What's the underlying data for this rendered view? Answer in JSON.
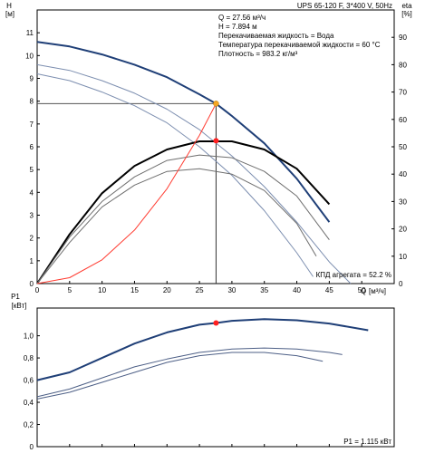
{
  "chart_data": [
    {
      "type": "line",
      "title": "UPS 65-120 F, 3*400 V, 50Hz",
      "ylabel": "H",
      "yunit": "[м]",
      "y2label": "eta",
      "y2unit": "[%]",
      "xlabel": "Q",
      "xunit": "[м³/ч]",
      "xlim": [
        0,
        55
      ],
      "ylim": [
        0,
        12
      ],
      "y2lim": [
        0,
        100
      ],
      "x_ticks": [
        0,
        5,
        10,
        15,
        20,
        25,
        30,
        35,
        40,
        45,
        50
      ],
      "y_ticks": [
        0,
        1,
        2,
        3,
        4,
        5,
        6,
        7,
        8,
        9,
        10,
        11
      ],
      "y2_ticks": [
        0,
        10,
        20,
        30,
        40,
        50,
        60,
        70,
        80,
        90
      ],
      "grid": false,
      "annotations": [
        "Q = 27.56 м³/ч",
        "H = 7.894 м",
        "Перекачиваемая жидкость = Вода",
        "Температура перекачиваемой жидкости = 60 °C",
        "Плотность = 983.2 кг/м³"
      ],
      "corner_label": "КПД агрегата = 52.2 %",
      "operating_point": {
        "x": 27.56,
        "y": 7.894,
        "color": "#f5a623"
      },
      "efficiency_point": {
        "x": 27.56,
        "y2": 52.2,
        "color": "#ff2020"
      },
      "series": [
        {
          "axis": "H",
          "color": "#1f3f77",
          "width": 2,
          "x": [
            0,
            5,
            10,
            15,
            20,
            25,
            27.56,
            30,
            35,
            40,
            45
          ],
          "y": [
            10.6,
            10.4,
            10.05,
            9.6,
            9.05,
            8.3,
            7.89,
            7.35,
            6.15,
            4.6,
            2.7
          ]
        },
        {
          "axis": "H",
          "color": "#7d8fb0",
          "width": 1,
          "x": [
            0,
            5,
            10,
            15,
            20,
            25,
            30,
            35,
            40,
            45,
            48.3
          ],
          "y": [
            9.6,
            9.35,
            8.9,
            8.35,
            7.65,
            6.75,
            5.6,
            4.25,
            2.7,
            0.95,
            0
          ]
        },
        {
          "axis": "H",
          "color": "#7d8fb0",
          "width": 1,
          "x": [
            0,
            5,
            10,
            15,
            20,
            25,
            30,
            35,
            40,
            42.5
          ],
          "y": [
            9.2,
            8.9,
            8.4,
            7.8,
            7.05,
            6.0,
            4.75,
            3.2,
            1.35,
            0.3
          ]
        },
        {
          "axis": "eta",
          "color": "#000000",
          "width": 2,
          "x": [
            0,
            5,
            10,
            15,
            20,
            25,
            30,
            35,
            40,
            45
          ],
          "y": [
            0,
            18,
            33,
            43,
            49,
            52,
            52,
            49,
            42,
            29
          ]
        },
        {
          "axis": "eta",
          "color": "#6e6e6e",
          "width": 1,
          "x": [
            0,
            5,
            10,
            15,
            20,
            25,
            30,
            35,
            40,
            45
          ],
          "y": [
            0,
            17,
            30,
            39,
            45,
            47,
            46,
            41,
            32,
            16
          ]
        },
        {
          "axis": "eta",
          "color": "#6e6e6e",
          "width": 1,
          "x": [
            0,
            5,
            10,
            15,
            20,
            25,
            30,
            35,
            40,
            43
          ],
          "y": [
            0,
            15,
            28,
            36,
            41,
            42,
            40,
            34,
            22,
            10
          ]
        },
        {
          "axis": "H",
          "color": "#ff3b30",
          "width": 1,
          "x": [
            0,
            5,
            10,
            15,
            20,
            25,
            27.56
          ],
          "y": [
            0,
            0.26,
            1.04,
            2.35,
            4.16,
            6.5,
            7.89
          ]
        }
      ]
    },
    {
      "type": "line",
      "ylabel": "P1",
      "yunit": "[кВт]",
      "xlim": [
        0,
        55
      ],
      "ylim": [
        0,
        1.25
      ],
      "y_ticks": [
        0,
        0.2,
        0.4,
        0.6,
        0.8,
        1.0
      ],
      "y_tick_labels": [
        "0",
        "0,2",
        "0,4",
        "0,6",
        "0,8",
        "1,0"
      ],
      "corner_label": "P1 = 1.115 кВт",
      "power_point": {
        "x": 27.56,
        "y": 1.115,
        "color": "#ff2020"
      },
      "series": [
        {
          "color": "#1f3f77",
          "width": 2,
          "x": [
            0,
            5,
            10,
            15,
            20,
            25,
            27.56,
            30,
            35,
            40,
            45,
            51
          ],
          "y": [
            0.6,
            0.67,
            0.8,
            0.93,
            1.03,
            1.1,
            1.115,
            1.135,
            1.15,
            1.14,
            1.11,
            1.05
          ]
        },
        {
          "color": "#4d5f86",
          "width": 1,
          "x": [
            0,
            5,
            10,
            15,
            20,
            25,
            30,
            35,
            40,
            45,
            47
          ],
          "y": [
            0.45,
            0.52,
            0.62,
            0.72,
            0.79,
            0.85,
            0.88,
            0.89,
            0.88,
            0.85,
            0.83
          ]
        },
        {
          "color": "#4d5f86",
          "width": 1,
          "x": [
            0,
            5,
            10,
            15,
            20,
            25,
            30,
            35,
            40,
            44
          ],
          "y": [
            0.43,
            0.49,
            0.58,
            0.67,
            0.76,
            0.82,
            0.85,
            0.85,
            0.82,
            0.77
          ]
        }
      ]
    }
  ]
}
